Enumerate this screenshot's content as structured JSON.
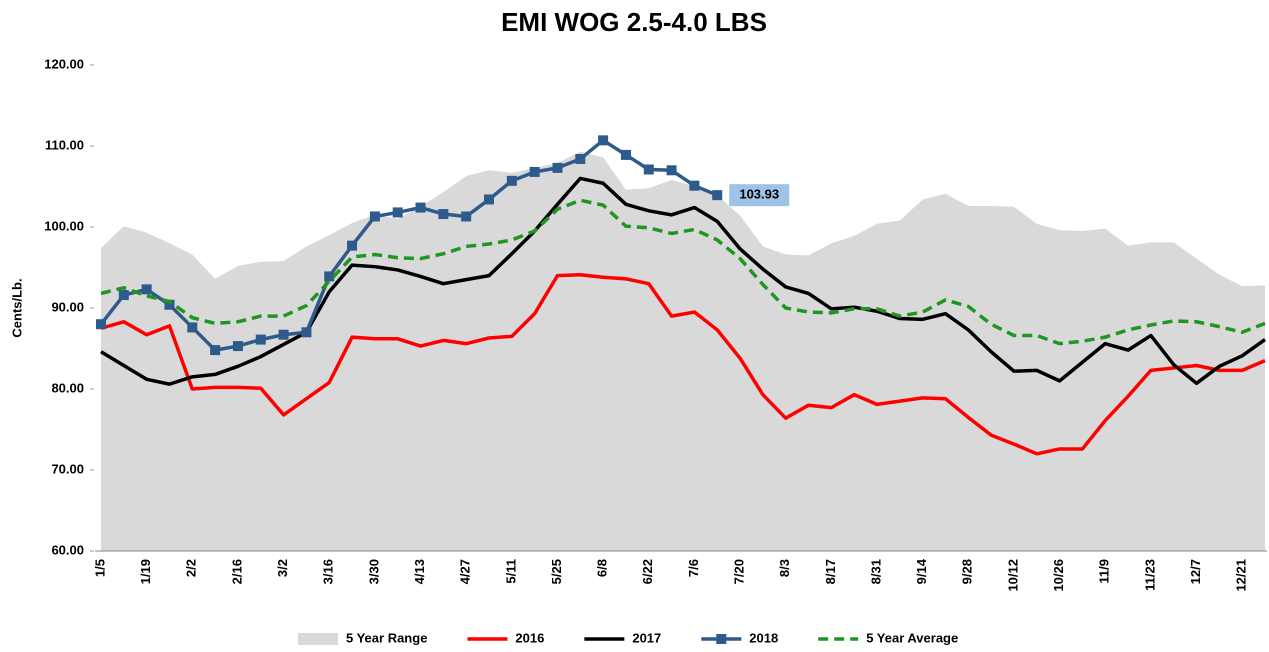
{
  "chart_data": {
    "type": "line",
    "title": "EMI WOG 2.5-4.0 LBS",
    "y_label": "Cents/Lb.",
    "categories": [
      "1/5",
      null,
      "1/19",
      null,
      "2/2",
      null,
      "2/16",
      null,
      "3/2",
      null,
      "3/16",
      null,
      "3/30",
      null,
      "4/13",
      null,
      "4/27",
      null,
      "5/11",
      null,
      "5/25",
      null,
      "6/8",
      null,
      "6/22",
      null,
      "7/6",
      null,
      "7/20",
      null,
      "8/3",
      null,
      "8/17",
      null,
      "8/31",
      null,
      "9/14",
      null,
      "9/28",
      null,
      "10/12",
      null,
      "10/26",
      null,
      "11/9",
      null,
      "11/23",
      null,
      "12/7",
      null,
      "12/21",
      null
    ],
    "ylim": [
      60,
      120
    ],
    "yticks": [
      {
        "value": 60,
        "label": "60.00"
      },
      {
        "value": 70,
        "label": "70.00"
      },
      {
        "value": 80,
        "label": "80.00"
      },
      {
        "value": 90,
        "label": "90.00"
      },
      {
        "value": 100,
        "label": "100.00"
      },
      {
        "value": 110,
        "label": "110.00"
      },
      {
        "value": 120,
        "label": "120.00"
      }
    ],
    "legend": "bottom",
    "series": [
      {
        "name": "5 Year Range",
        "color": "#d9d9d9",
        "style": "area",
        "values": [
          97.4,
          100.1,
          99.3,
          98.0,
          96.6,
          93.6,
          95.2,
          95.7,
          95.8,
          97.6,
          99.0,
          100.5,
          101.5,
          101.0,
          102.5,
          104.3,
          106.3,
          107.0,
          106.7,
          107.3,
          107.9,
          109.3,
          108.6,
          104.6,
          104.8,
          105.8,
          105.1,
          103.9,
          101.4,
          97.6,
          96.6,
          96.5,
          98.0,
          98.9,
          100.4,
          100.8,
          103.4,
          104.1,
          102.6,
          102.6,
          102.5,
          100.4,
          99.6,
          99.5,
          99.8,
          97.7,
          98.1,
          98.1,
          96.1,
          94.1,
          92.7,
          92.8
        ]
      },
      {
        "name": "2016",
        "color": "#ff0000",
        "style": "line",
        "values": [
          87.5,
          88.3,
          86.7,
          87.8,
          80.0,
          80.2,
          80.2,
          80.1,
          76.8,
          78.8,
          80.8,
          86.4,
          86.2,
          86.2,
          85.3,
          86.0,
          85.6,
          86.3,
          86.5,
          89.3,
          94.0,
          94.1,
          93.8,
          93.6,
          93.0,
          89.0,
          89.5,
          87.3,
          83.8,
          79.3,
          76.4,
          78.0,
          77.7,
          79.3,
          78.1,
          78.5,
          78.9,
          78.8,
          76.5,
          74.3,
          73.2,
          72.0,
          72.6,
          72.6,
          76.1,
          79.1,
          82.3,
          82.6,
          82.9,
          82.3,
          82.3,
          83.5
        ]
      },
      {
        "name": "2017",
        "color": "#000000",
        "style": "line",
        "values": [
          84.6,
          82.9,
          81.2,
          80.6,
          81.5,
          81.8,
          82.8,
          84.0,
          85.5,
          87.0,
          92.0,
          95.3,
          95.1,
          94.7,
          93.9,
          93.0,
          93.5,
          94.0,
          96.7,
          99.5,
          102.8,
          106.0,
          105.4,
          102.8,
          102.0,
          101.5,
          102.4,
          100.7,
          97.3,
          94.8,
          92.6,
          91.8,
          89.9,
          90.1,
          89.6,
          88.7,
          88.6,
          89.3,
          87.3,
          84.6,
          82.2,
          82.3,
          81.0,
          83.3,
          85.6,
          84.8,
          86.6,
          83.0,
          80.7,
          82.8,
          84.1,
          86.1
        ]
      },
      {
        "name": "2018",
        "color": "#2e5a8c",
        "style": "line",
        "marker": "square",
        "last_label": true,
        "values": [
          88.0,
          91.6,
          92.3,
          90.4,
          87.6,
          84.8,
          85.3,
          86.1,
          86.7,
          87.0,
          93.9,
          97.7,
          101.3,
          101.8,
          102.4,
          101.6,
          101.3,
          103.4,
          105.7,
          106.8,
          107.3,
          108.4,
          110.7,
          108.9,
          107.1,
          107.0,
          105.1,
          103.93,
          null,
          null,
          null,
          null,
          null,
          null,
          null,
          null,
          null,
          null,
          null,
          null,
          null,
          null,
          null,
          null,
          null,
          null,
          null,
          null,
          null,
          null,
          null,
          null
        ]
      },
      {
        "name": "5 Year Average",
        "color": "#1e9620",
        "style": "line",
        "dash": true,
        "values": [
          91.8,
          92.5,
          91.5,
          90.8,
          88.8,
          88.1,
          88.3,
          89.0,
          89.0,
          90.3,
          93.3,
          96.3,
          96.6,
          96.2,
          96.1,
          96.7,
          97.6,
          97.9,
          98.4,
          99.5,
          102.2,
          103.3,
          102.7,
          100.1,
          99.9,
          99.2,
          99.7,
          98.4,
          96.1,
          92.9,
          90.0,
          89.5,
          89.4,
          89.9,
          89.9,
          89.0,
          89.5,
          91.0,
          90.2,
          88.0,
          86.6,
          86.6,
          85.6,
          85.9,
          86.4,
          87.3,
          87.9,
          88.4,
          88.3,
          87.7,
          87.0,
          88.1
        ]
      }
    ]
  }
}
